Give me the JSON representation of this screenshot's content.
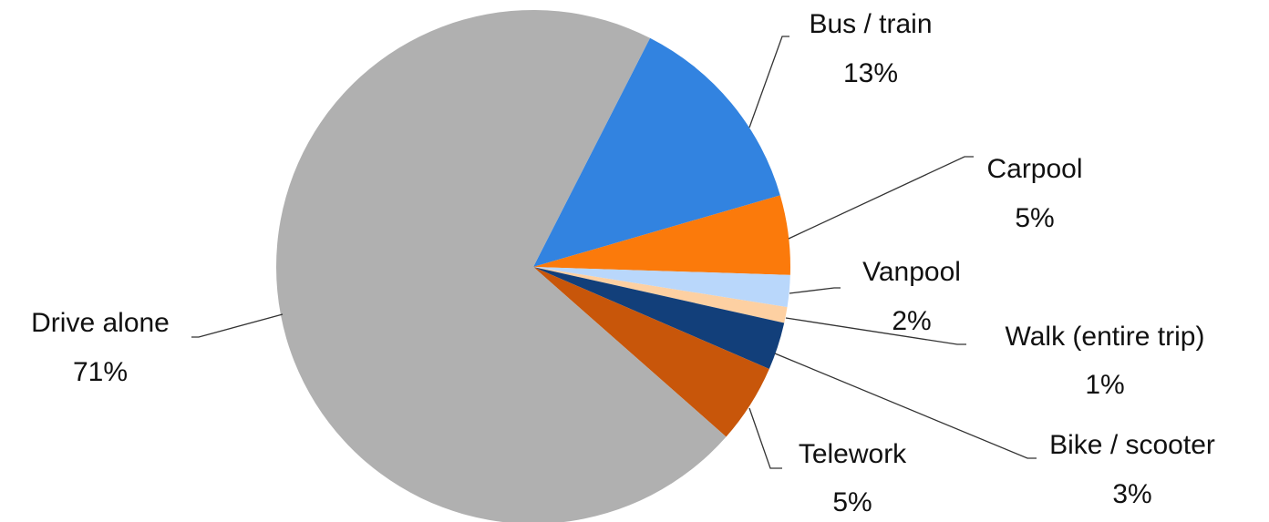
{
  "chart_data": {
    "type": "pie",
    "categories": [
      "Bus / train",
      "Carpool",
      "Vanpool",
      "Walk (entire trip)",
      "Bike / scooter",
      "Telework",
      "Drive alone"
    ],
    "values": [
      13,
      5,
      2,
      1,
      3,
      5,
      71
    ],
    "value_labels": [
      "13%",
      "5%",
      "2%",
      "1%",
      "3%",
      "5%",
      "71%"
    ],
    "colors": [
      "#3283e0",
      "#fb7a0b",
      "#b9d7fb",
      "#fdd0a2",
      "#123f7a",
      "#c8560a",
      "#b0b0b0"
    ]
  }
}
